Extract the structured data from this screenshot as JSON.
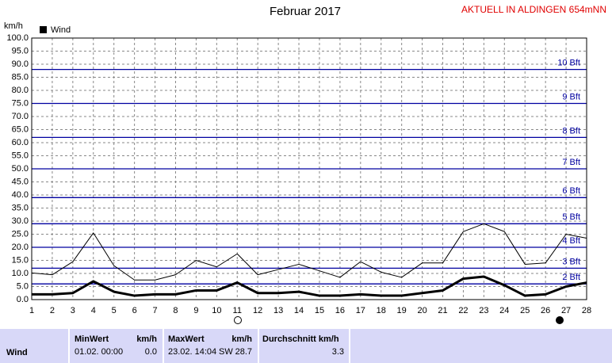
{
  "chart_data": {
    "type": "line",
    "title": "Februar 2017",
    "header_note": "AKTUELL IN ALDINGEN 654mNN",
    "ylabel": "km/h",
    "x": [
      1,
      2,
      3,
      4,
      5,
      6,
      7,
      8,
      9,
      10,
      11,
      12,
      13,
      14,
      15,
      16,
      17,
      18,
      19,
      20,
      21,
      22,
      23,
      24,
      25,
      26,
      27,
      28
    ],
    "xlim": [
      1,
      28
    ],
    "xticks": [
      1,
      2,
      3,
      4,
      5,
      6,
      7,
      8,
      9,
      10,
      11,
      12,
      13,
      14,
      15,
      16,
      17,
      18,
      19,
      20,
      21,
      22,
      23,
      24,
      25,
      26,
      27,
      28
    ],
    "ylim": [
      0,
      100
    ],
    "yticks": [
      {
        "value": 0,
        "label": "0.0"
      },
      {
        "value": 5,
        "label": "5.0"
      },
      {
        "value": 10,
        "label": "10.0"
      },
      {
        "value": 15,
        "label": "15.0"
      },
      {
        "value": 20,
        "label": "20.0"
      },
      {
        "value": 25,
        "label": "25.0"
      },
      {
        "value": 30,
        "label": "30.0"
      },
      {
        "value": 35,
        "label": "35.0"
      },
      {
        "value": 40,
        "label": "40.0"
      },
      {
        "value": 45,
        "label": "45.0"
      },
      {
        "value": 50,
        "label": "50.0"
      },
      {
        "value": 55,
        "label": "55.0"
      },
      {
        "value": 60,
        "label": "60.0"
      },
      {
        "value": 65,
        "label": "65.0"
      },
      {
        "value": 70,
        "label": "70.0"
      },
      {
        "value": 75,
        "label": "75.0"
      },
      {
        "value": 80,
        "label": "80.0"
      },
      {
        "value": 85,
        "label": "85.0"
      },
      {
        "value": 90,
        "label": "90.0"
      },
      {
        "value": 95,
        "label": "95.0"
      },
      {
        "value": 100,
        "label": "100.0"
      }
    ],
    "grid": true,
    "reference_color": "#0000a0",
    "reference_lines": [
      {
        "value": 88,
        "label": "10 Bft"
      },
      {
        "value": 75,
        "label": "9 Bft"
      },
      {
        "value": 62,
        "label": "8 Bft"
      },
      {
        "value": 50,
        "label": "7 Bft"
      },
      {
        "value": 39,
        "label": "6 Bft"
      },
      {
        "value": 29,
        "label": "5 Bft"
      },
      {
        "value": 20,
        "label": "4 Bft"
      },
      {
        "value": 12,
        "label": "3 Bft"
      },
      {
        "value": 6,
        "label": "2 Bft"
      }
    ],
    "series": [
      {
        "name": "Wind",
        "color": "#000000",
        "width": 3,
        "values": [
          2,
          2,
          2.5,
          7,
          3,
          1.5,
          2,
          2,
          3.5,
          3.5,
          6.5,
          2.5,
          2.5,
          3,
          1.5,
          1.5,
          2,
          1.5,
          1.5,
          2.5,
          3.5,
          8,
          8.8,
          5.5,
          1.5,
          2,
          5,
          6.5
        ]
      },
      {
        "color": "#000000",
        "width": 1,
        "values": [
          10.2,
          9.5,
          14.5,
          25.5,
          13,
          7.5,
          7.5,
          9.5,
          15,
          12.5,
          17.5,
          9.5,
          11.5,
          13.5,
          11,
          8.5,
          14.5,
          10.5,
          8.5,
          14,
          14,
          26,
          29,
          26,
          13.5,
          14,
          25,
          23.5
        ]
      }
    ]
  },
  "table": {
    "row_label": "Wind",
    "min": {
      "title": "MinWert",
      "unit": "km/h",
      "time": "01.02.  00:00",
      "value": "0.0"
    },
    "max": {
      "title": "MaxWert",
      "unit": "km/h",
      "time": "23.02.  14:04",
      "dir": "SW",
      "value": "28.7"
    },
    "avg": {
      "title": "Durchschnitt km/h",
      "value": "3.3"
    }
  }
}
